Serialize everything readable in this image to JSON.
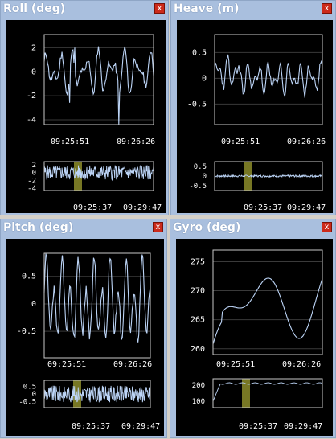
{
  "panels": [
    {
      "title": "Roll (deg)",
      "close": "x",
      "main": {
        "yticks": [
          "2",
          "0",
          "-2",
          "-4"
        ],
        "ytick_values": [
          2,
          0,
          -2,
          -4
        ],
        "ylim": [
          -4.4,
          3.1
        ],
        "times": [
          "09:25:51",
          "09:26:26"
        ]
      },
      "mini": {
        "yticks": [
          "2",
          "0",
          "-2",
          "-4"
        ],
        "ytick_values": [
          2,
          0,
          -2,
          -4
        ],
        "ylim": [
          -4.6,
          2.8
        ],
        "times": [
          "09:25:37",
          "09:29:47"
        ]
      }
    },
    {
      "title": "Heave (m)",
      "close": "x",
      "main": {
        "yticks": [
          "0.5",
          "0",
          "-0.5"
        ],
        "ytick_values": [
          0.5,
          0,
          -0.5
        ],
        "ylim": [
          -0.9,
          0.85
        ],
        "times": [
          "09:25:51",
          "09:26:26"
        ]
      },
      "mini": {
        "yticks": [
          "0.5",
          "0",
          "-0.5"
        ],
        "ytick_values": [
          0.5,
          0,
          -0.5
        ],
        "ylim": [
          -0.75,
          0.75
        ],
        "times": [
          "09:25:37",
          "09:29:47"
        ]
      }
    },
    {
      "title": "Pitch (deg)",
      "close": "x",
      "main": {
        "yticks": [
          "0.5",
          "0",
          "-0.5"
        ],
        "ytick_values": [
          0.5,
          0,
          -0.5
        ],
        "ylim": [
          -0.98,
          0.92
        ],
        "times": [
          "09:25:51",
          "09:26:26"
        ]
      },
      "mini": {
        "yticks": [
          "0.5",
          "0",
          "-0.5"
        ],
        "ytick_values": [
          0.5,
          0,
          -0.5
        ],
        "ylim": [
          -0.9,
          0.9
        ],
        "times": [
          "09:25:37",
          "09:29:47"
        ]
      }
    },
    {
      "title": "Gyro (deg)",
      "close": "x",
      "main": {
        "yticks": [
          "275",
          "270",
          "265",
          "260"
        ],
        "ytick_values": [
          275,
          270,
          265,
          260
        ],
        "ylim": [
          259,
          277
        ],
        "times": [
          "09:25:51",
          "09:26:26"
        ]
      },
      "mini": {
        "yticks": [
          "200",
          "100"
        ],
        "ytick_values": [
          200,
          100
        ],
        "ylim": [
          60,
          240
        ],
        "times": [
          "09:25:37",
          "09:29:47"
        ]
      }
    }
  ]
}
